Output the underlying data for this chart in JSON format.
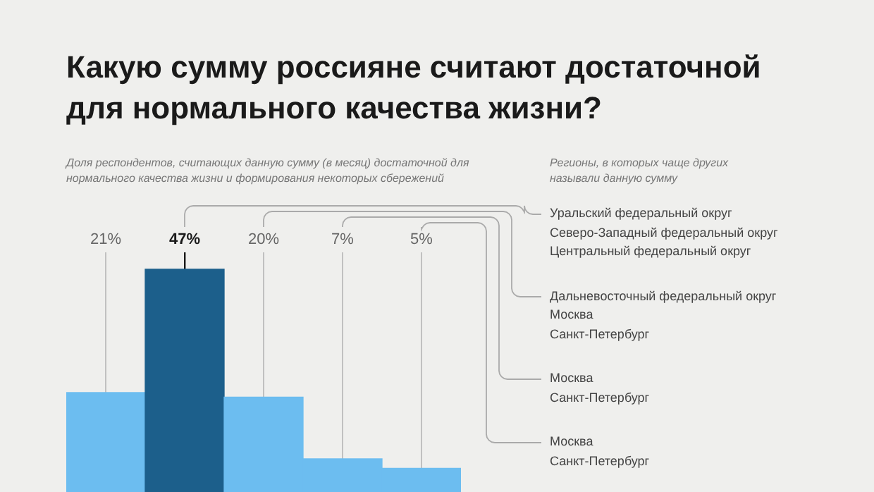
{
  "chart_data": {
    "type": "bar",
    "title": "Какую сумму россияне считают достаточной для нормального качества жизни?",
    "subtitle": "Доля респондентов, считающих данную сумму (в месяц) достаточной для нормального качества жизни и формирования некоторых сбережений",
    "categories": [
      null,
      null,
      null,
      null,
      null
    ],
    "values": [
      21,
      47,
      20,
      7,
      5
    ],
    "colors": [
      "#6cbdf0",
      "#1c5f8b",
      "#6cbdf0",
      "#6cbdf0",
      "#6cbdf0"
    ],
    "value_labels": [
      "21%",
      "47%",
      "20%",
      "7%",
      "5%"
    ],
    "grid": "x",
    "annotations": [
      "Регионы, в которых чаще других\nназывали данную сумму",
      "Уральский федеральный округ\nСеверо-Западный федеральный округ\nЦентральный федеральный округ",
      "Дальневосточный федеральный округ\nМосква\nСанкт-Петербург",
      "Москва\nСанкт-Петербург",
      "Москва\nСанкт-Петербург"
    ]
  }
}
